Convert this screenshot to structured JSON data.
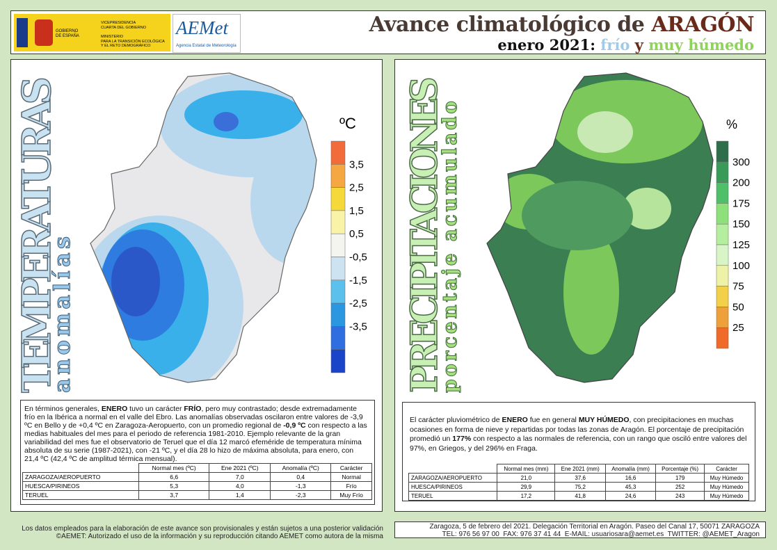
{
  "header": {
    "gov": {
      "vice": [
        "VICEPRESIDENCIA",
        "CUARTA DEL GOBIERNO"
      ],
      "gobierno": [
        "GOBIERNO",
        "DE ESPAÑA"
      ],
      "ministerio": [
        "MINISTERIO",
        "PARA LA TRANSICIÓN ECOLÓGICA",
        "Y EL RETO DEMOGRÁFICO"
      ]
    },
    "aemet": {
      "logo": "AEMet",
      "name": "Agencia Estatal de Meteorología"
    },
    "title": {
      "text": "Avance climatológico de ",
      "region": "ARAGÓN"
    },
    "subtitle": {
      "date": "enero 2021:",
      "cold": "frío",
      "and": "y",
      "wet": "muy húmedo"
    }
  },
  "temperature": {
    "heading": "TEMPERATURAS",
    "subheading": "anomalías",
    "unit": "ºC",
    "legend": [
      "3,5",
      "2,5",
      "1,5",
      "0,5",
      "-0,5",
      "-1,5",
      "-2,5",
      "-3,5"
    ],
    "description": [
      "En términos generales, ",
      "ENERO",
      " tuvo un carácter ",
      "FRÍO",
      ", pero muy contrastado; desde extremadamente frío en la Ibérica a normal en el valle del Ebro. Las anomalías observadas oscilaron entre valores de -3,9 ºC en Bello y de +0,4 ºC en Zaragoza-Aeropuerto, con un promedio regional de ",
      "-0,9 ºC",
      " con respecto a las medias habituales del mes para el periodo de referencia 1981-2010. Ejemplo relevante de la gran variabilidad del mes fue el observatorio de Teruel que el día 12 marcó efeméride de temperatura mínima absoluta de su serie (1987-2021), con -21 ºC, y el día 28 lo hizo de máxima absoluta, para enero, con 21,4 ºC (42,4 ºC de amplitud térmica mensual)."
    ],
    "table": {
      "columns": [
        "Normal mes (ºC)",
        "Ene 2021 (ºC)",
        "Anomalía (ºC)",
        "Carácter"
      ],
      "rows": [
        [
          "ZARAGOZA/AEROPUERTO",
          "6,6",
          "7,0",
          "0,4",
          "Normal"
        ],
        [
          "HUESCA/PIRINEOS",
          "5,3",
          "4,0",
          "-1,3",
          "Frío"
        ],
        [
          "TERUEL",
          "3,7",
          "1,4",
          "-2,3",
          "Muy Frío"
        ]
      ]
    }
  },
  "precipitation": {
    "heading": "PRECIPITACIONES",
    "subheading": "porcentaje acumulado",
    "unit": "%",
    "legend": [
      "300",
      "200",
      "175",
      "150",
      "125",
      "100",
      "75",
      "50",
      "25"
    ],
    "description": [
      "El carácter pluviométrico de ",
      "ENERO",
      " fue en general ",
      "MUY HÚMEDO",
      ", con precipitaciones en muchas ocasiones en forma de nieve y repartidas por todas las zonas de Aragón. El porcentaje de precipitación promedió un ",
      "177%",
      " con respecto a las normales de referencia, con un rango que osciló entre valores del 97%, en Griegos, y del 296% en Fraga."
    ],
    "table": {
      "columns": [
        "Normal mes (mm)",
        "Ene 2021 (mm)",
        "Anomalía (mm)",
        "Porcentaje (%)",
        "Carácter"
      ],
      "rows": [
        [
          "ZARAGOZA/AEROPUERTO",
          "21,0",
          "37,6",
          "16,6",
          "179",
          "Muy Húmedo"
        ],
        [
          "HUESCA/PIRINEOS",
          "29,9",
          "75,2",
          "45,3",
          "252",
          "Muy Húmedo"
        ],
        [
          "TERUEL",
          "17,2",
          "41,8",
          "24,6",
          "243",
          "Muy Húmedo"
        ]
      ]
    }
  },
  "footer": {
    "disclaimer": [
      "Los datos empleados para la elaboración de este avance son provisionales y están sujetos a una posterior validación",
      "©AEMET: Autorizado el uso de la información y su reproducción citando AEMET como autora de la misma"
    ],
    "contact": [
      "Zaragoza, 5 de febrero del 2021. Delegación Territorial en Aragón. Paseo del Canal 17, 50071 ZARAGOZA",
      "TEL: 976 56 97 00  FAX: 976 37 41 44  E-MAIL: usuariosara@aemet.es  TWITTER: @AEMET_Aragon"
    ]
  }
}
